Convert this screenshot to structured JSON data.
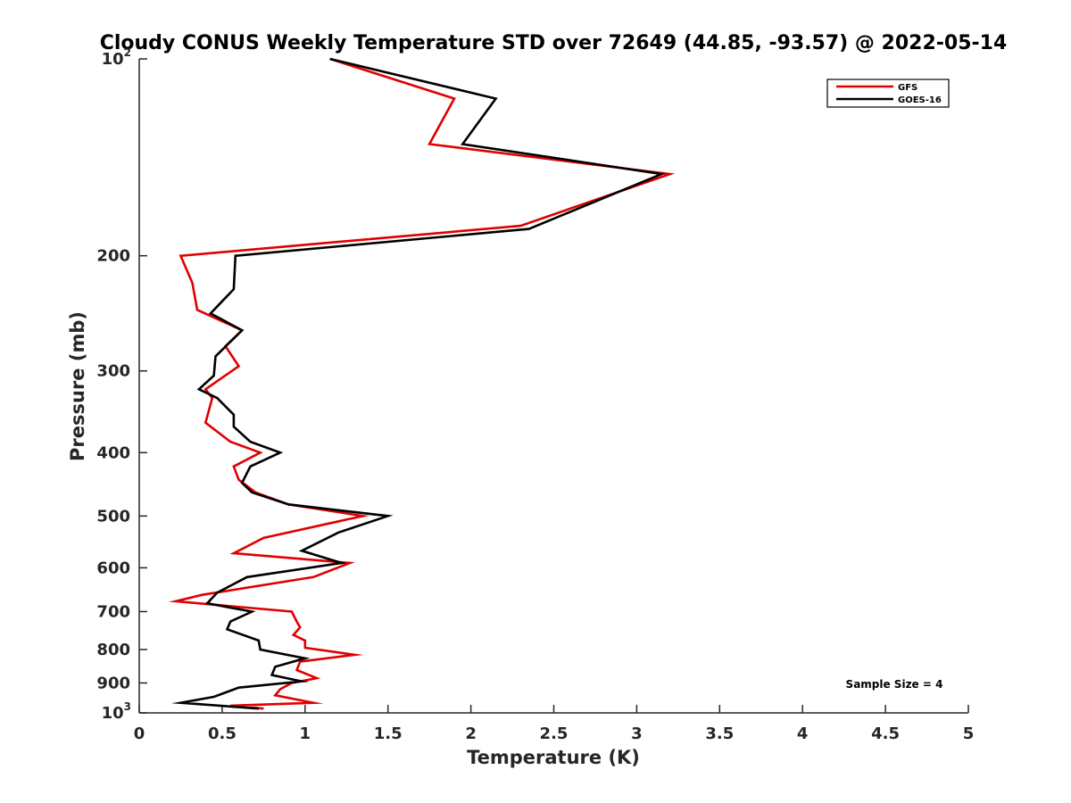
{
  "chart_data": {
    "type": "line",
    "title": "Cloudy CONUS Weekly Temperature STD over 72649 (44.85, -93.57) @ 2022-05-14",
    "xlabel": "Temperature (K)",
    "ylabel": "Pressure (mb)",
    "xlim": [
      0,
      5
    ],
    "ylim": [
      100,
      1000
    ],
    "y_scale": "log",
    "y_reversed": true,
    "x_ticks": [
      {
        "value": 0,
        "label": "0"
      },
      {
        "value": 0.5,
        "label": "0.5"
      },
      {
        "value": 1,
        "label": "1"
      },
      {
        "value": 1.5,
        "label": "1.5"
      },
      {
        "value": 2,
        "label": "2"
      },
      {
        "value": 2.5,
        "label": "2.5"
      },
      {
        "value": 3,
        "label": "3"
      },
      {
        "value": 3.5,
        "label": "3.5"
      },
      {
        "value": 4,
        "label": "4"
      },
      {
        "value": 4.5,
        "label": "4.5"
      },
      {
        "value": 5,
        "label": "5"
      }
    ],
    "y_ticks": [
      {
        "value": 100,
        "base": "10",
        "exp": "2"
      },
      {
        "value": 200,
        "label": "200"
      },
      {
        "value": 300,
        "label": "300"
      },
      {
        "value": 400,
        "label": "400"
      },
      {
        "value": 500,
        "label": "500"
      },
      {
        "value": 600,
        "label": "600"
      },
      {
        "value": 700,
        "label": "700"
      },
      {
        "value": 800,
        "label": "800"
      },
      {
        "value": 900,
        "label": "900"
      },
      {
        "value": 1000,
        "base": "10",
        "exp": "3"
      }
    ],
    "grid": false,
    "legend_position": "top-right",
    "annotation": "Sample Size = 4",
    "series": [
      {
        "name": "GFS",
        "color": "#e00000",
        "points": [
          [
            1.15,
            100
          ],
          [
            1.9,
            115
          ],
          [
            1.75,
            135
          ],
          [
            3.2,
            150
          ],
          [
            2.3,
            180
          ],
          [
            0.25,
            200
          ],
          [
            0.32,
            220
          ],
          [
            0.35,
            242
          ],
          [
            0.62,
            260
          ],
          [
            0.52,
            275
          ],
          [
            0.6,
            295
          ],
          [
            0.4,
            320
          ],
          [
            0.44,
            330
          ],
          [
            0.4,
            360
          ],
          [
            0.55,
            385
          ],
          [
            0.73,
            400
          ],
          [
            0.57,
            420
          ],
          [
            0.6,
            440
          ],
          [
            0.7,
            460
          ],
          [
            0.9,
            480
          ],
          [
            1.35,
            500
          ],
          [
            0.75,
            540
          ],
          [
            0.57,
            570
          ],
          [
            1.27,
            590
          ],
          [
            1.05,
            620
          ],
          [
            0.38,
            660
          ],
          [
            0.22,
            675
          ],
          [
            0.92,
            700
          ],
          [
            0.95,
            725
          ],
          [
            0.97,
            740
          ],
          [
            0.93,
            760
          ],
          [
            1.0,
            775
          ],
          [
            1.0,
            795
          ],
          [
            1.3,
            815
          ],
          [
            0.97,
            835
          ],
          [
            0.95,
            860
          ],
          [
            1.07,
            885
          ],
          [
            0.92,
            900
          ],
          [
            0.85,
            920
          ],
          [
            0.82,
            940
          ],
          [
            1.05,
            965
          ],
          [
            0.55,
            975
          ],
          [
            0.75,
            985
          ]
        ]
      },
      {
        "name": "GOES-16",
        "color": "#000000",
        "points": [
          [
            1.15,
            100
          ],
          [
            2.15,
            115
          ],
          [
            1.95,
            135
          ],
          [
            3.15,
            150
          ],
          [
            2.35,
            182
          ],
          [
            0.58,
            200
          ],
          [
            0.57,
            225
          ],
          [
            0.43,
            245
          ],
          [
            0.62,
            260
          ],
          [
            0.46,
            285
          ],
          [
            0.45,
            305
          ],
          [
            0.36,
            320
          ],
          [
            0.47,
            330
          ],
          [
            0.57,
            350
          ],
          [
            0.57,
            365
          ],
          [
            0.67,
            385
          ],
          [
            0.85,
            400
          ],
          [
            0.67,
            420
          ],
          [
            0.62,
            445
          ],
          [
            0.68,
            460
          ],
          [
            0.9,
            480
          ],
          [
            1.5,
            500
          ],
          [
            1.2,
            530
          ],
          [
            0.98,
            565
          ],
          [
            1.22,
            590
          ],
          [
            0.65,
            620
          ],
          [
            0.47,
            655
          ],
          [
            0.41,
            680
          ],
          [
            0.68,
            700
          ],
          [
            0.55,
            725
          ],
          [
            0.53,
            745
          ],
          [
            0.72,
            775
          ],
          [
            0.73,
            800
          ],
          [
            1.0,
            825
          ],
          [
            0.82,
            850
          ],
          [
            0.8,
            875
          ],
          [
            0.98,
            895
          ],
          [
            0.6,
            915
          ],
          [
            0.45,
            945
          ],
          [
            0.25,
            965
          ],
          [
            0.72,
            985
          ]
        ]
      }
    ]
  }
}
